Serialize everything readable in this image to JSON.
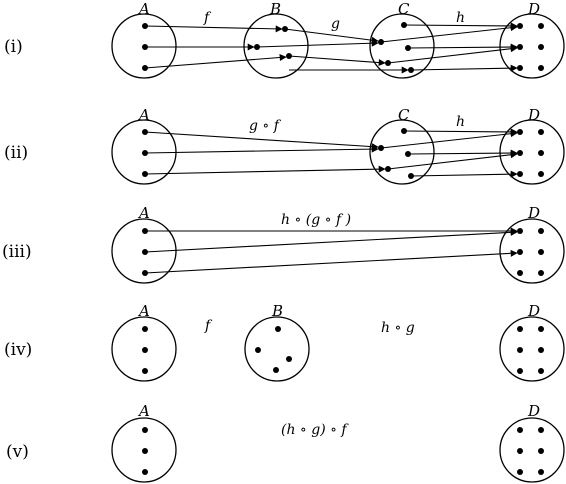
{
  "rows": [
    {
      "label": "(i)",
      "sets": {
        "A": "A",
        "B": "B",
        "C": "C",
        "D": "D"
      },
      "functions": {
        "f": "f",
        "g": "g",
        "h": "h"
      }
    },
    {
      "label": "(ii)",
      "sets": {
        "A": "A",
        "C": "C",
        "D": "D"
      },
      "functions": {
        "gf": "g ∘ f",
        "h": "h"
      }
    },
    {
      "label": "(iii)",
      "sets": {
        "A": "A",
        "D": "D"
      },
      "functions": {
        "hgf": "h ∘ (g ∘ f )"
      }
    },
    {
      "label": "(iv)",
      "sets": {
        "A": "A",
        "B": "B",
        "D": "D"
      },
      "functions": {
        "f": "f",
        "hg": "h ∘ g"
      }
    },
    {
      "label": "(v)",
      "sets": {
        "A": "A",
        "D": "D"
      },
      "functions": {
        "hgf": "(h ∘ g) ∘ f"
      }
    }
  ]
}
